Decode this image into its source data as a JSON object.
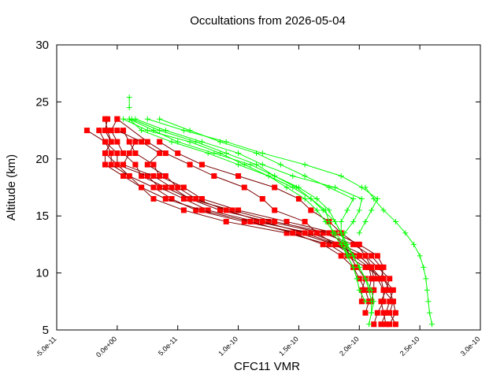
{
  "chart_data": {
    "type": "line",
    "title": "Occultations from 2026-05-04",
    "xlabel": "CFC11 VMR",
    "ylabel": "Altitude (km)",
    "xlim": [
      -5e-11,
      3e-10
    ],
    "ylim": [
      5,
      30
    ],
    "x_ticks": [
      "-5.0e-11",
      "0.0e+00",
      "5.0e-11",
      "1.0e-10",
      "1.5e-10",
      "2.0e-10",
      "2.5e-10",
      "3.0e-10"
    ],
    "x_tick_values": [
      -5e-11,
      0,
      5e-11,
      1e-10,
      1.5e-10,
      2e-10,
      2.5e-10,
      3e-10
    ],
    "y_ticks": [
      "5",
      "10",
      "15",
      "20",
      "25",
      "30"
    ],
    "y_tick_values": [
      5,
      10,
      15,
      20,
      25,
      30
    ],
    "grid": false,
    "legend": "none",
    "series_colors": {
      "red": "#ff0000",
      "green": "#00ff00",
      "link": "#7a0000"
    },
    "altitudes": [
      5.5,
      6.5,
      7.5,
      8.5,
      9.5,
      10.5,
      11.5,
      12.5,
      13.5,
      14.5,
      15.5,
      16.5,
      17.5,
      18.5,
      19.5,
      20.5,
      21.5,
      22.5,
      23.5
    ],
    "series": [
      {
        "color": "red",
        "x": [
          2.25e-10,
          2.3e-10,
          2.28e-10,
          2.25e-10,
          2.2e-10,
          2.05e-10,
          1.9e-10,
          1.75e-10,
          1.4e-10,
          9e-11,
          5.5e-11,
          3e-11,
          2e-11,
          5e-12,
          -1e-11,
          -1e-11,
          -5e-12,
          -8e-12,
          -1e-11
        ]
      },
      {
        "color": "red",
        "x": [
          2.3e-10,
          2.25e-10,
          2.28e-10,
          2.2e-10,
          2.15e-10,
          2.1e-10,
          2e-10,
          1.8e-10,
          1.5e-10,
          1.05e-10,
          6.5e-11,
          4.5e-11,
          3e-11,
          1e-11,
          0.0,
          -1e-11,
          -5e-12,
          -1e-11,
          -8e-12
        ]
      },
      {
        "color": "red",
        "x": [
          2.18e-10,
          2.22e-10,
          2.25e-10,
          2.28e-10,
          2.2e-10,
          2.18e-10,
          2.1e-10,
          1.95e-10,
          1.7e-10,
          1.25e-10,
          8.5e-11,
          6e-11,
          4e-11,
          2e-11,
          1.5e-11,
          5e-12,
          0.0,
          -5e-12,
          0.0
        ]
      },
      {
        "color": "red",
        "x": [
          2.22e-10,
          2.2e-10,
          2.18e-10,
          2.22e-10,
          2.25e-10,
          2.15e-10,
          2.05e-10,
          1.85e-10,
          1.6e-10,
          1.15e-10,
          7.5e-11,
          5.5e-11,
          3.5e-11,
          2.5e-11,
          0.0,
          0.0,
          -1e-11,
          -1.5e-11,
          null
        ]
      },
      {
        "color": "red",
        "x": [
          2.12e-10,
          2.15e-10,
          2.2e-10,
          2.2e-10,
          2.18e-10,
          2.2e-10,
          2.15e-10,
          2e-10,
          1.8e-10,
          1.4e-10,
          1e-10,
          7e-11,
          5.5e-11,
          3.5e-11,
          3e-11,
          1.5e-11,
          1e-11,
          5e-12,
          null
        ]
      },
      {
        "color": "red",
        "x": [
          null,
          2.05e-10,
          2.08e-10,
          2.05e-10,
          2e-10,
          1.95e-10,
          1.85e-10,
          1.7e-10,
          1.45e-10,
          1.1e-10,
          7e-11,
          4e-11,
          2e-11,
          1e-11,
          -5e-12,
          -5e-12,
          -1e-11,
          -2.5e-11,
          null
        ]
      },
      {
        "color": "red",
        "x": [
          null,
          null,
          2.02e-10,
          2.02e-10,
          2.05e-10,
          1.98e-10,
          1.92e-10,
          1.88e-10,
          1.75e-10,
          1.3e-10,
          9.5e-11,
          6e-11,
          4.5e-11,
          3e-11,
          5e-12,
          1e-11,
          1.5e-11,
          null,
          null
        ]
      },
      {
        "color": "red",
        "x": [
          null,
          null,
          2.1e-10,
          2.12e-10,
          2.12e-10,
          2.1e-10,
          2e-10,
          1.82e-10,
          1.55e-10,
          1.2e-10,
          9e-11,
          6.5e-11,
          5e-11,
          4e-11,
          2.5e-11,
          3.5e-11,
          2e-11,
          0.0,
          null
        ]
      },
      {
        "color": "red",
        "x": [
          null,
          null,
          null,
          2.08e-10,
          2.1e-10,
          2.08e-10,
          1.95e-10,
          1.8e-10,
          1.65e-10,
          1.55e-10,
          1.3e-10,
          1.2e-10,
          1.05e-10,
          8e-11,
          6e-11,
          4e-11,
          2.5e-11,
          null,
          0.0
        ]
      },
      {
        "color": "red",
        "x": [
          null,
          null,
          null,
          null,
          2.18e-10,
          2.1e-10,
          2.05e-10,
          1.98e-10,
          1.85e-10,
          1.75e-10,
          1.6e-10,
          1.5e-10,
          1.3e-10,
          1e-10,
          7e-11,
          5e-11,
          3.5e-11,
          null,
          null
        ]
      },
      {
        "color": "green",
        "x": [
          2.6e-10,
          2.58e-10,
          2.57e-10,
          2.56e-10,
          2.55e-10,
          2.53e-10,
          2.5e-10,
          2.45e-10,
          2.38e-10,
          2.3e-10,
          2.2e-10,
          2.12e-10,
          2.05e-10,
          null,
          null,
          null,
          null,
          null,
          null
        ]
      },
      {
        "color": "green",
        "x": [
          2.08e-10,
          2.1e-10,
          2.1e-10,
          2.08e-10,
          2.05e-10,
          2e-10,
          1.95e-10,
          1.9e-10,
          1.85e-10,
          1.8e-10,
          1.7e-10,
          1.6e-10,
          1.45e-10,
          1.25e-10,
          1e-10,
          7.5e-11,
          4.5e-11,
          2e-11,
          1e-11
        ]
      },
      {
        "color": "green",
        "x": [
          null,
          2.1e-10,
          2.12e-10,
          2.1e-10,
          2.05e-10,
          2e-10,
          1.95e-10,
          1.9e-10,
          1.85e-10,
          1.8e-10,
          1.75e-10,
          1.65e-10,
          1.5e-10,
          1.3e-10,
          1.1e-10,
          8e-11,
          5e-11,
          3e-11,
          1e-11
        ]
      },
      {
        "color": "green",
        "x": [
          null,
          null,
          2.05e-10,
          2e-10,
          1.98e-10,
          1.95e-10,
          1.9e-10,
          1.88e-10,
          1.85e-10,
          1.85e-10,
          1.9e-10,
          1.95e-10,
          1.75e-10,
          1.55e-10,
          1.35e-10,
          1.15e-10,
          8.5e-11,
          6e-11,
          3.5e-11
        ]
      },
      {
        "color": "green",
        "x": [
          null,
          null,
          null,
          null,
          1.98e-10,
          1.95e-10,
          1.9e-10,
          1.85e-10,
          1.88e-10,
          1.95e-10,
          2e-10,
          2.02e-10,
          1.8e-10,
          1.45e-10,
          1.2e-10,
          1e-10,
          7e-11,
          4e-11,
          1.5e-11
        ]
      },
      {
        "color": "green",
        "x": [
          null,
          null,
          null,
          null,
          null,
          2e-10,
          1.95e-10,
          1.88e-10,
          1.8e-10,
          1.72e-10,
          1.65e-10,
          1.55e-10,
          1.4e-10,
          1.25e-10,
          1.05e-10,
          8.5e-11,
          6e-11,
          2.5e-11,
          5e-12
        ]
      },
      {
        "color": "green",
        "x": [
          null,
          null,
          null,
          null,
          null,
          null,
          1.92e-10,
          1.85e-10,
          1.78e-10,
          1.75e-10,
          1.72e-10,
          1.6e-10,
          1.48e-10,
          1.3e-10,
          1.15e-10,
          9e-11,
          6.5e-11,
          3.5e-11,
          1.2e-11
        ]
      },
      {
        "color": "green",
        "x": [
          null,
          null,
          null,
          null,
          null,
          null,
          null,
          null,
          2e-10,
          2.05e-10,
          2.1e-10,
          2.15e-10,
          2.02e-10,
          1.85e-10,
          1.55e-10,
          1.2e-10,
          9e-11,
          5.5e-11,
          2.5e-11
        ]
      }
    ],
    "extra_points": [
      {
        "color": "green",
        "x": 1e-11,
        "y": 24.5
      },
      {
        "color": "green",
        "x": 1e-11,
        "y": 25.4
      }
    ]
  }
}
